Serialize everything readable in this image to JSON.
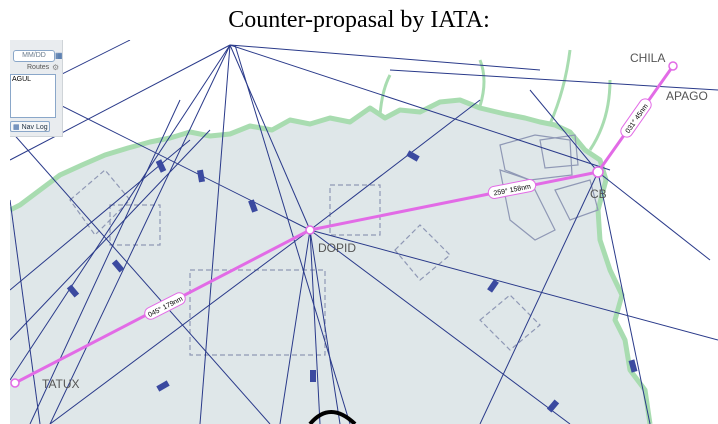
{
  "title": "Counter-propasal by IATA:",
  "panel": {
    "date_placeholder": "MM/DD",
    "date_icon": "calendar-icon",
    "routes_label": "Routes",
    "routes_icon": "gear-icon",
    "route_text": "AGUL",
    "navlog_label": "Nav Log",
    "navlog_icon": "table-icon"
  },
  "waypoints": {
    "chila": "CHILA",
    "apago": "APAGO",
    "cb": "CB",
    "dopid": "DOPID",
    "tatux": "TATUX"
  },
  "route": {
    "color": "#e26be6",
    "leg1": "045° 179nm",
    "leg2": "259° 158nm",
    "leg3": "031° 45nm"
  },
  "colors": {
    "sea": "#dfe7e9",
    "land": "#ffffff",
    "coast": "#a8dcb0",
    "airway": "#2a3a8a"
  }
}
